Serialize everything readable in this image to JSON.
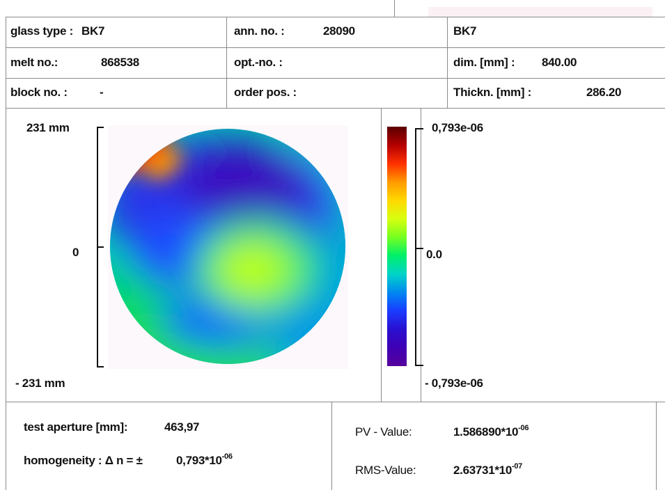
{
  "header": {
    "glass_type_label": "glass type :",
    "glass_type_value": "BK7",
    "ann_no_label": "ann. no. :",
    "ann_no_value": "28090",
    "glass_name": "BK7",
    "melt_no_label": "melt no.:",
    "melt_no_value": "868538",
    "opt_no_label": "opt.-no. :",
    "opt_no_value": "",
    "dim_label": "dim. [mm] :",
    "dim_value": "840.00",
    "block_no_label": "block no. :",
    "block_no_value": "-",
    "order_pos_label": "order pos. :",
    "order_pos_value": "",
    "thickness_label": "Thickn. [mm] :",
    "thickness_value": "286.20"
  },
  "map": {
    "axis_top": "231 mm",
    "axis_mid": "0",
    "axis_bottom": "- 231 mm",
    "scale_top": "0,793e-06",
    "scale_mid": "0.0",
    "scale_bottom": "- 0,793e-06",
    "colormap": [
      "#5a0000",
      "#b40000",
      "#ff3000",
      "#ff9a00",
      "#ffd800",
      "#d8ff10",
      "#76ff20",
      "#00f06a",
      "#00d4c8",
      "#0088f0",
      "#1a3cff",
      "#2a10d0",
      "#3f00b4",
      "#56009c"
    ]
  },
  "results": {
    "aperture_label": "test aperture [mm]:",
    "aperture_value": "463,97",
    "homogeneity_label": "homogeneity : Δ n = ±",
    "homogeneity_value": "0,793*10",
    "homogeneity_exp": "-06",
    "pv_label": "PV - Value:",
    "pv_value": "1.586890*10",
    "pv_exp": "-06",
    "rms_label": "RMS-Value:",
    "rms_value": "2.63731*10",
    "rms_exp": "-07"
  }
}
